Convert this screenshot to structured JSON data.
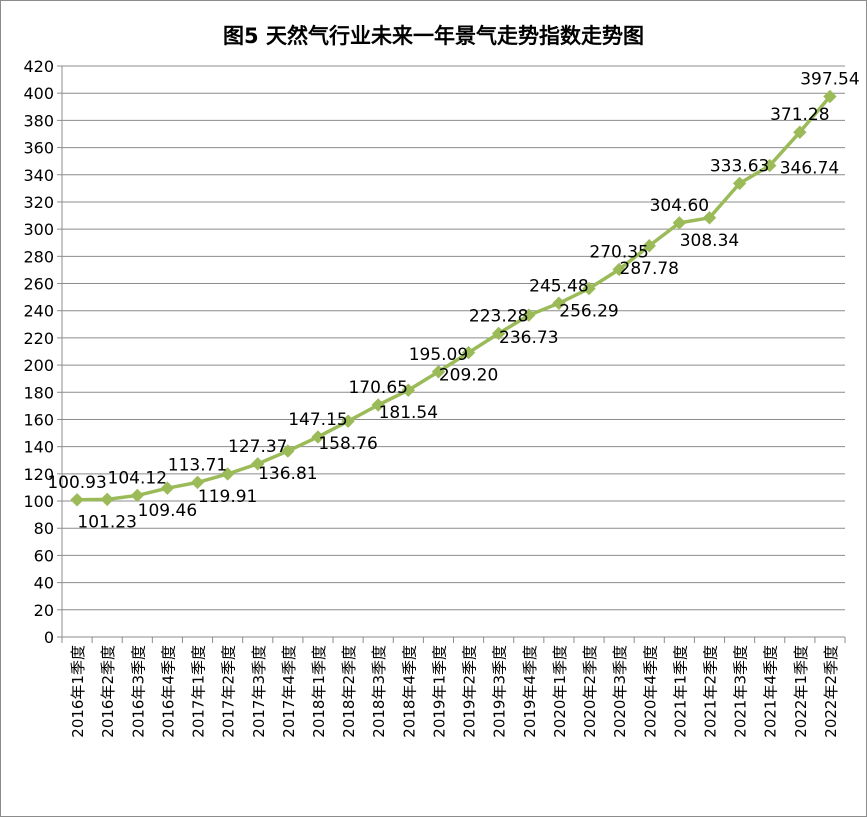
{
  "chart_data": {
    "type": "line",
    "title": "图5 天然气行业未来一年景气走势指数走势图",
    "categories": [
      "2016年1季度",
      "2016年2季度",
      "2016年3季度",
      "2016年4季度",
      "2017年1季度",
      "2017年2季度",
      "2017年3季度",
      "2017年4季度",
      "2018年1季度",
      "2018年2季度",
      "2018年3季度",
      "2018年4季度",
      "2019年1季度",
      "2019年2季度",
      "2019年3季度",
      "2019年4季度",
      "2020年1季度",
      "2020年2季度",
      "2020年3季度",
      "2020年4季度",
      "2021年1季度",
      "2021年2季度",
      "2021年3季度",
      "2021年4季度",
      "2022年1季度",
      "2022年2季度"
    ],
    "values": [
      100.93,
      101.23,
      104.12,
      109.46,
      113.71,
      119.91,
      127.37,
      136.81,
      147.15,
      158.76,
      170.65,
      181.54,
      195.09,
      209.2,
      223.28,
      236.73,
      245.48,
      256.29,
      270.35,
      287.78,
      304.6,
      308.34,
      333.63,
      346.74,
      371.28,
      397.54
    ],
    "value_labels": [
      "100.93",
      "101.23",
      "104.12",
      "109.46",
      "113.71",
      "119.91",
      "127.37",
      "136.81",
      "147.15",
      "158.76",
      "170.65",
      "181.54",
      "195.09",
      "209.20",
      "223.28",
      "236.73",
      "245.48",
      "256.29",
      "270.35",
      "287.78",
      "304.60",
      "308.34",
      "333.63",
      "346.74",
      "371.28",
      "397.54"
    ],
    "label_positions": [
      "above",
      "below",
      "above",
      "below",
      "above",
      "below",
      "above",
      "below",
      "above",
      "below",
      "above",
      "below",
      "above",
      "below",
      "above",
      "below",
      "above",
      "below",
      "above",
      "below",
      "above",
      "below",
      "above",
      "right",
      "above",
      "above"
    ],
    "ylim": [
      0,
      420
    ],
    "yticks": [
      0,
      20,
      40,
      60,
      80,
      100,
      120,
      140,
      160,
      180,
      200,
      220,
      240,
      260,
      280,
      300,
      320,
      340,
      360,
      380,
      400,
      420
    ],
    "grid": true,
    "xlabel": "",
    "ylabel": "",
    "series_color": "#9bbb59",
    "grid_color": "#8c8c8c",
    "marker": "diamond"
  }
}
